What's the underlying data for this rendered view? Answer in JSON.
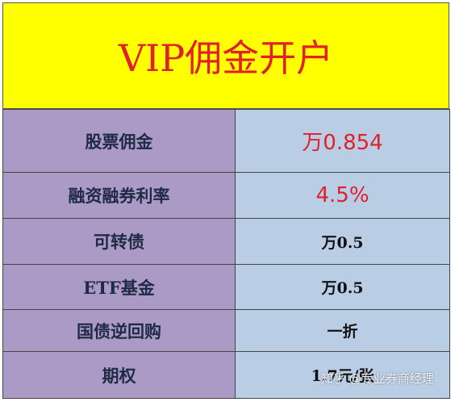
{
  "header": {
    "title": "VIP佣金开户"
  },
  "table": {
    "rows": [
      [
        "股票佣金",
        "万0.854"
      ],
      [
        "融资融券利率",
        "4.5%"
      ],
      [
        "可转债",
        "万0.5"
      ],
      [
        "ETF基金",
        "万0.5"
      ],
      [
        "国债逆回购",
        "一折"
      ],
      [
        "期权",
        "1.7元/张"
      ]
    ]
  },
  "watermark": "知乎 @专业券商经理"
}
